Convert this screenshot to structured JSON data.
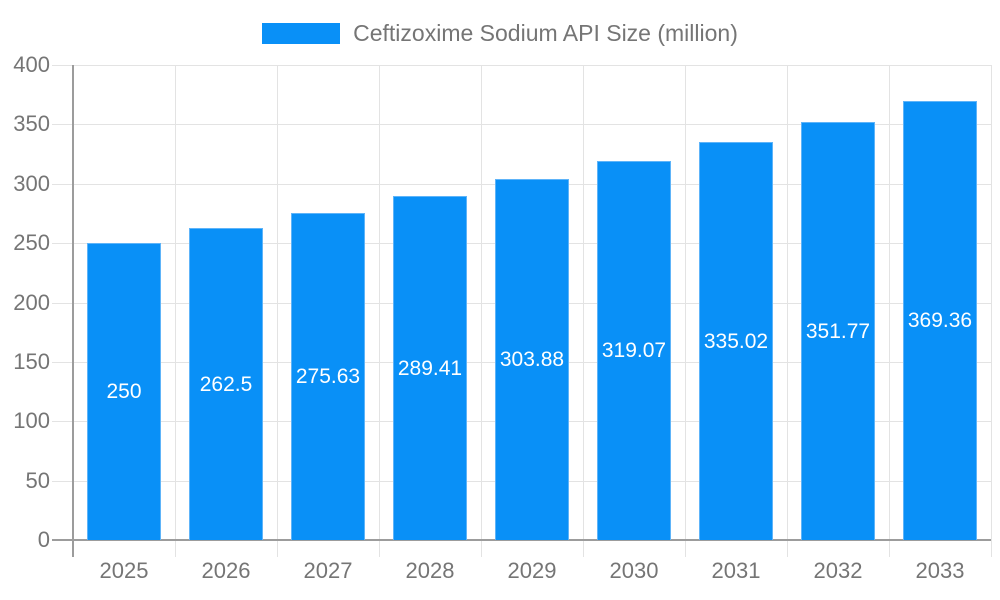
{
  "chart_data": {
    "type": "bar",
    "title": "",
    "legend": "Ceftizoxime Sodium API Size (million)",
    "legend_position": "top-center",
    "categories": [
      "2025",
      "2026",
      "2027",
      "2028",
      "2029",
      "2030",
      "2031",
      "2032",
      "2033"
    ],
    "values": [
      250,
      262.5,
      275.63,
      289.41,
      303.88,
      319.07,
      335.02,
      351.77,
      369.36
    ],
    "value_labels": [
      "250",
      "262.5",
      "275.63",
      "289.41",
      "303.88",
      "319.07",
      "335.02",
      "351.77",
      "369.36"
    ],
    "xlabel": "",
    "ylabel": "",
    "ylim": [
      0,
      400
    ],
    "yticks": [
      0,
      50,
      100,
      150,
      200,
      250,
      300,
      350,
      400
    ],
    "grid": "horizontal-lines-and-category-band-borders",
    "colors": {
      "bar_fill": "#0990f7",
      "bar_border": "#5eb4f9",
      "axis_line": "#9c9c9c",
      "gridline": "#e3e3e3",
      "tick_label": "#757575",
      "legend_text": "#757575",
      "value_label": "#ffffff",
      "background": "#ffffff"
    }
  }
}
